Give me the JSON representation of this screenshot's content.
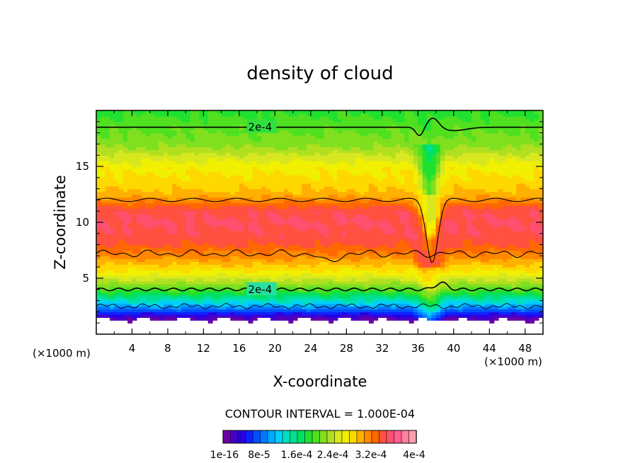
{
  "chart_data": {
    "type": "heatmap",
    "title": "density of cloud",
    "xlabel": "X-coordinate",
    "ylabel": "Z-coordinate",
    "x_unit": "(×1000 m)",
    "y_unit": "(×1000 m)",
    "xlim": [
      0,
      50
    ],
    "ylim": [
      0,
      20
    ],
    "x_ticks": [
      "4",
      "8",
      "12",
      "16",
      "20",
      "24",
      "28",
      "32",
      "36",
      "40",
      "44",
      "48"
    ],
    "x_tick_values": [
      4,
      8,
      12,
      16,
      20,
      24,
      28,
      32,
      36,
      40,
      44,
      48
    ],
    "y_ticks": [
      "5",
      "10",
      "15"
    ],
    "y_tick_values": [
      5,
      10,
      15
    ],
    "contour_interval_text": "CONTOUR INTERVAL = 1.000E-04",
    "contour_labels": [
      {
        "text": "2e-4",
        "x": 17,
        "z": 18.5
      },
      {
        "text": "2e-4",
        "x": 17,
        "z": 4.0
      }
    ],
    "colorbar": {
      "tick_labels": [
        "1e-16",
        "8e-5",
        "1.6e-4",
        "2.4e-4",
        "3.2e-4",
        "4e-4"
      ],
      "colors": [
        "#6a00a8",
        "#4800c8",
        "#2a00e0",
        "#1020ff",
        "#0050ff",
        "#0078ff",
        "#00a8ff",
        "#00d0ff",
        "#00e0c0",
        "#00e090",
        "#00e060",
        "#20e030",
        "#50e020",
        "#80e020",
        "#b0e020",
        "#d8e820",
        "#f0f000",
        "#ffd800",
        "#ffb000",
        "#ff8800",
        "#ff6800",
        "#ff5040",
        "#ff5070",
        "#ff6090",
        "#ff80a0",
        "#ff9fa8"
      ]
    },
    "profile": {
      "z": [
        0,
        1.0,
        1.5,
        2.0,
        2.5,
        3.0,
        3.5,
        4.0,
        4.5,
        5.0,
        5.5,
        6.0,
        6.5,
        7.0,
        7.5,
        8.0,
        9.0,
        10.0,
        11.0,
        11.5,
        12.0,
        12.5,
        13.0,
        13.5,
        14.0,
        14.5,
        15.0,
        15.5,
        16.0,
        16.5,
        17.0,
        17.5,
        18.0,
        18.5,
        19.0,
        19.5,
        20.0
      ],
      "density": [
        0,
        0,
        2e-05,
        6e-05,
        0.0001,
        0.00013,
        0.00016,
        0.00019,
        0.000215,
        0.000235,
        0.000255,
        0.00027,
        0.000285,
        0.0003,
        0.00031,
        0.000325,
        0.000335,
        0.00034,
        0.000335,
        0.00032,
        0.0003,
        0.000285,
        0.000275,
        0.00027,
        0.000265,
        0.00026,
        0.000255,
        0.000245,
        0.000235,
        0.00022,
        0.00021,
        0.000205,
        0.0002,
        0.000195,
        0.00019,
        0.000185,
        0.00018
      ]
    }
  }
}
